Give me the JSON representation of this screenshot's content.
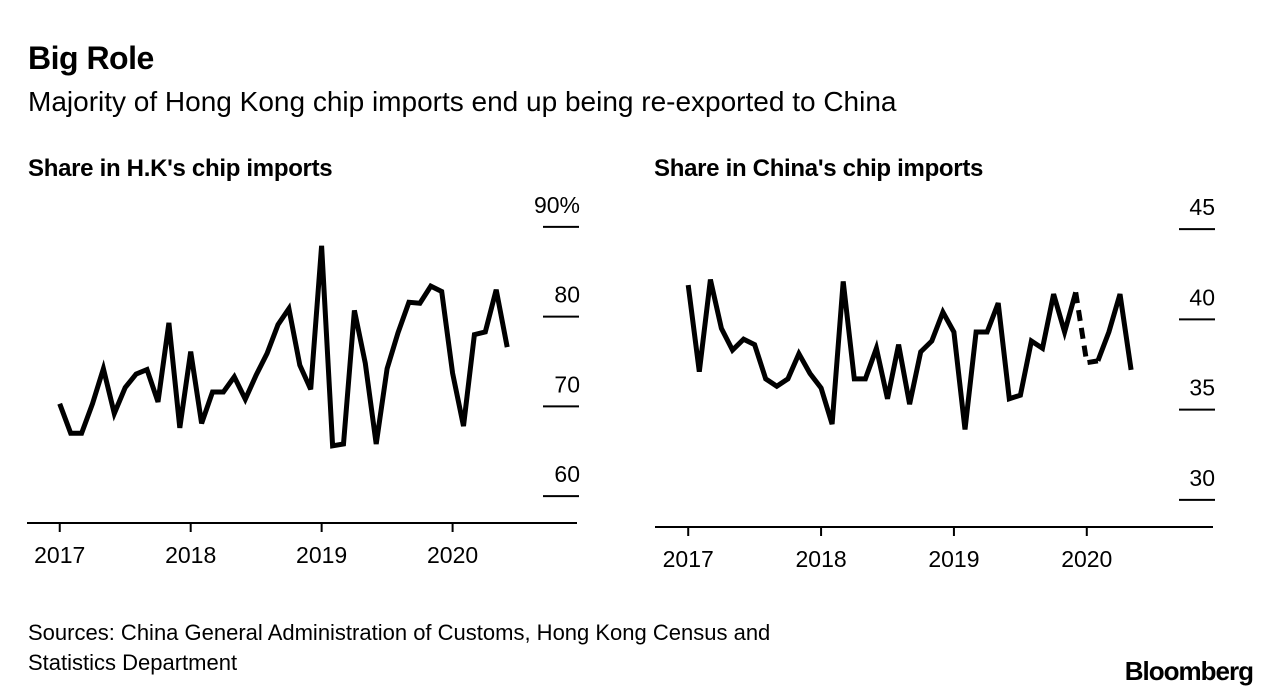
{
  "title": "Big Role",
  "subtitle": "Majority of Hong Kong chip imports end up being re-exported to China",
  "source": {
    "line1": "Sources: China General Administration of Customs, Hong Kong Census and",
    "line2": "Statistics Department"
  },
  "brand": "Bloomberg",
  "chart_data": [
    {
      "type": "line",
      "title": "Share in H.K's chip imports",
      "x_start": 2017.0,
      "x_step": 0.0833333,
      "xlim": [
        2016.75,
        2020.95
      ],
      "ylim": [
        57,
        93
      ],
      "y_ticks": [
        90,
        80,
        70,
        60
      ],
      "y_tick_labels": [
        "90%",
        "80",
        "70",
        "60"
      ],
      "x_ticks": [
        2017,
        2018,
        2019,
        2020
      ],
      "x_tick_labels": [
        "2017",
        "2018",
        "2019",
        "2020"
      ],
      "series": [
        {
          "name": "Share in H.K's chip imports",
          "values": [
            70.3,
            67.0,
            67.0,
            70.3,
            74.2,
            69.2,
            72.1,
            73.6,
            74.1,
            70.5,
            79.3,
            67.6,
            76.1,
            68.1,
            71.6,
            71.6,
            73.3,
            70.8,
            73.5,
            75.9,
            79.1,
            80.9,
            74.6,
            71.9,
            87.9,
            65.6,
            65.8,
            80.7,
            74.8,
            65.8,
            74.2,
            78.2,
            81.6,
            81.5,
            83.4,
            82.8,
            73.7,
            67.8,
            78.0,
            78.3,
            83.0,
            76.6
          ],
          "dashed_segments": []
        }
      ]
    },
    {
      "type": "line",
      "title": "Share in China's chip imports",
      "x_start": 2017.0,
      "x_step": 0.0833333,
      "xlim": [
        2016.75,
        2020.95
      ],
      "ylim": [
        28.5,
        46.5
      ],
      "y_ticks": [
        45,
        40,
        35,
        30
      ],
      "y_tick_labels": [
        "45",
        "40",
        "35",
        "30"
      ],
      "x_ticks": [
        2017,
        2018,
        2019,
        2020
      ],
      "x_tick_labels": [
        "2017",
        "2018",
        "2019",
        "2020"
      ],
      "series": [
        {
          "name": "Share in China's chip imports",
          "values": [
            41.9,
            37.1,
            42.2,
            39.5,
            38.3,
            38.9,
            38.6,
            36.7,
            36.3,
            36.7,
            38.1,
            37.0,
            36.2,
            34.2,
            42.1,
            36.7,
            36.7,
            38.4,
            35.6,
            38.6,
            35.3,
            38.2,
            38.8,
            40.4,
            39.3,
            33.9,
            39.3,
            39.3,
            40.9,
            35.6,
            35.8,
            38.8,
            38.4,
            41.4,
            39.3,
            41.5,
            37.6,
            37.7,
            39.3,
            41.4,
            37.2
          ],
          "dashed_segments": [
            [
              35,
              37
            ]
          ]
        }
      ]
    }
  ]
}
